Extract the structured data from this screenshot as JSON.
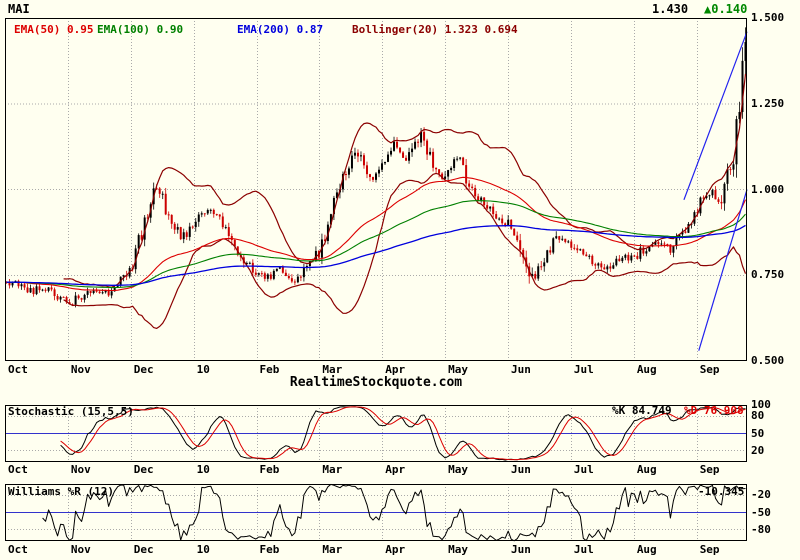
{
  "header": {
    "symbol": "MAI",
    "price": "1.430",
    "change": "▲0.140"
  },
  "legend": [
    {
      "label": "EMA(50) 0.95",
      "color": "#dd0000"
    },
    {
      "label": "EMA(100) 0.90",
      "color": "#008000"
    },
    {
      "label": "EMA(200) 0.87",
      "color": "#0000dd"
    },
    {
      "label": "Bollinger(20) 1.323 0.694",
      "color": "#8b0000"
    }
  ],
  "watermark": "RealtimeStockquote.com",
  "axes": {
    "main_y_ticks": [
      "1.500",
      "1.250",
      "1.000",
      "0.750",
      "0.500"
    ],
    "x_labels": [
      "Oct",
      "Nov",
      "Dec",
      "10",
      "Feb",
      "Mar",
      "Apr",
      "May",
      "Jun",
      "Jul",
      "Aug",
      "Sep"
    ],
    "stoch_y_ticks": [
      "100",
      "80",
      "50",
      "20"
    ],
    "williams_y_ticks": [
      "-20",
      "-50",
      "-80"
    ]
  },
  "stochastic": {
    "label": "Stochastic (15,5,5)",
    "k_label": "%K 84.749",
    "d_label": "%D 76.908"
  },
  "williams": {
    "label": "Williams %R (12)",
    "value": "-10.345"
  },
  "colors": {
    "background": "#fffff0",
    "frame": "#000000",
    "grid": "#aaaaaa",
    "candle_up": "#000000",
    "candle_down": "#cc0000",
    "ema50": "#dd0000",
    "ema100": "#008000",
    "ema200": "#0000dd",
    "bollinger": "#8b0000",
    "trendline": "#2222ee",
    "midline": "#3333cc",
    "stoch_k": "#000000",
    "stoch_d": "#dd0000",
    "williams_line": "#000000",
    "change_up": "#008800"
  },
  "chart_data": {
    "type": "candlestick",
    "title": "MAI",
    "last": 1.43,
    "change": 0.14,
    "ylim": [
      0.5,
      1.5
    ],
    "y_ticks": [
      1.5,
      1.25,
      1.0,
      0.75,
      0.5
    ],
    "x_labels": [
      "Oct",
      "Nov",
      "Dec",
      "10",
      "Feb",
      "Mar",
      "Apr",
      "May",
      "Jun",
      "Jul",
      "Aug",
      "Sep"
    ],
    "close_anchors": [
      0.73,
      0.72,
      0.7,
      0.72,
      0.69,
      0.67,
      0.69,
      0.71,
      0.7,
      0.73,
      0.78,
      0.9,
      1.01,
      0.92,
      0.86,
      0.89,
      0.95,
      0.91,
      0.84,
      0.79,
      0.76,
      0.74,
      0.77,
      0.72,
      0.77,
      0.82,
      0.94,
      1.04,
      1.11,
      1.03,
      1.07,
      1.14,
      1.09,
      1.16,
      1.08,
      1.03,
      1.1,
      1.0,
      0.96,
      0.93,
      0.9,
      0.85,
      0.73,
      0.81,
      0.86,
      0.84,
      0.81,
      0.79,
      0.77,
      0.8,
      0.8,
      0.83,
      0.85,
      0.83,
      0.87,
      0.93,
      1.0,
      0.97,
      1.1,
      1.43
    ],
    "overlays": [
      {
        "name": "EMA",
        "period": 50,
        "last": 0.95
      },
      {
        "name": "EMA",
        "period": 100,
        "last": 0.9
      },
      {
        "name": "EMA",
        "period": 200,
        "last": 0.87
      },
      {
        "name": "Bollinger",
        "period": 20,
        "upper_last": 1.323,
        "lower_last": 0.694
      }
    ],
    "indicators": [
      {
        "name": "Stochastic",
        "params": [
          15,
          5,
          5
        ],
        "k": 84.749,
        "d": 76.908,
        "range": [
          0,
          100
        ],
        "ticks": [
          100,
          80,
          50,
          20
        ],
        "midline": 50
      },
      {
        "name": "Williams %R",
        "period": 12,
        "value": -10.345,
        "range": [
          -100,
          0
        ],
        "ticks": [
          -20,
          -50,
          -80
        ],
        "midline": -50
      }
    ],
    "trendlines": [
      {
        "t1": 0.915,
        "p1": 0.97,
        "t2": 1.0,
        "p2": 1.46
      },
      {
        "t1": 0.935,
        "p1": 0.53,
        "t2": 1.0,
        "p2": 1.0
      }
    ],
    "grid": true,
    "legend_position": "top-left"
  }
}
